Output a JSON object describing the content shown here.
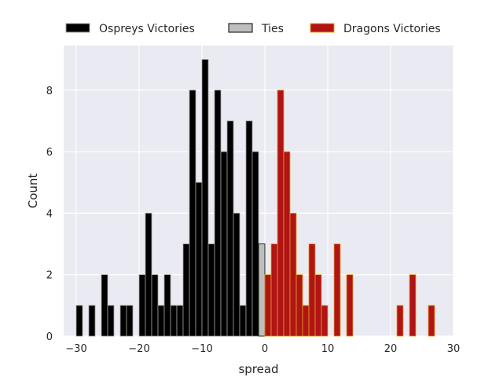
{
  "chart_data": {
    "type": "bar",
    "chart_kind": "histogram",
    "xlabel": "spread",
    "ylabel": "Count",
    "xlim": [
      -32,
      30
    ],
    "ylim": [
      0,
      9.45
    ],
    "xticks": [
      -30,
      -20,
      -10,
      0,
      10,
      20,
      30
    ],
    "yticks": [
      0,
      2,
      4,
      6,
      8
    ],
    "grid": true,
    "background": "#EAEAF2",
    "legend_position": "top",
    "bin_width": 1,
    "series": [
      {
        "name": "Ospreys Victories",
        "color": "#000000",
        "edge_color": "#9E9E9E",
        "bins": [
          {
            "x": -29.5,
            "count": 1
          },
          {
            "x": -27.5,
            "count": 1
          },
          {
            "x": -25.5,
            "count": 2
          },
          {
            "x": -24.5,
            "count": 1
          },
          {
            "x": -22.5,
            "count": 1
          },
          {
            "x": -21.5,
            "count": 1
          },
          {
            "x": -19.5,
            "count": 2
          },
          {
            "x": -18.5,
            "count": 4
          },
          {
            "x": -17.5,
            "count": 2
          },
          {
            "x": -16.5,
            "count": 1
          },
          {
            "x": -15.5,
            "count": 2
          },
          {
            "x": -14.5,
            "count": 1
          },
          {
            "x": -13.5,
            "count": 1
          },
          {
            "x": -12.5,
            "count": 3
          },
          {
            "x": -11.5,
            "count": 8
          },
          {
            "x": -10.5,
            "count": 5
          },
          {
            "x": -9.5,
            "count": 9
          },
          {
            "x": -8.5,
            "count": 3
          },
          {
            "x": -7.5,
            "count": 8
          },
          {
            "x": -6.5,
            "count": 6
          },
          {
            "x": -5.5,
            "count": 7
          },
          {
            "x": -4.5,
            "count": 4
          },
          {
            "x": -3.5,
            "count": 1
          },
          {
            "x": -2.5,
            "count": 7
          },
          {
            "x": -1.5,
            "count": 6
          }
        ]
      },
      {
        "name": "Ties",
        "color": "#BEBEBE",
        "edge_color": "#000000",
        "bins": [
          {
            "x": -0.5,
            "count": 3
          }
        ]
      },
      {
        "name": "Dragons Victories",
        "color": "#B01414",
        "edge_color": "#E8A020",
        "bins": [
          {
            "x": 0.5,
            "count": 2
          },
          {
            "x": 1.5,
            "count": 3
          },
          {
            "x": 2.5,
            "count": 8
          },
          {
            "x": 3.5,
            "count": 6
          },
          {
            "x": 4.5,
            "count": 4
          },
          {
            "x": 5.5,
            "count": 2
          },
          {
            "x": 6.5,
            "count": 1
          },
          {
            "x": 7.5,
            "count": 3
          },
          {
            "x": 8.5,
            "count": 2
          },
          {
            "x": 9.5,
            "count": 1
          },
          {
            "x": 11.5,
            "count": 3
          },
          {
            "x": 13.5,
            "count": 2
          },
          {
            "x": 21.5,
            "count": 1
          },
          {
            "x": 23.5,
            "count": 2
          },
          {
            "x": 26.5,
            "count": 1
          }
        ]
      }
    ]
  }
}
